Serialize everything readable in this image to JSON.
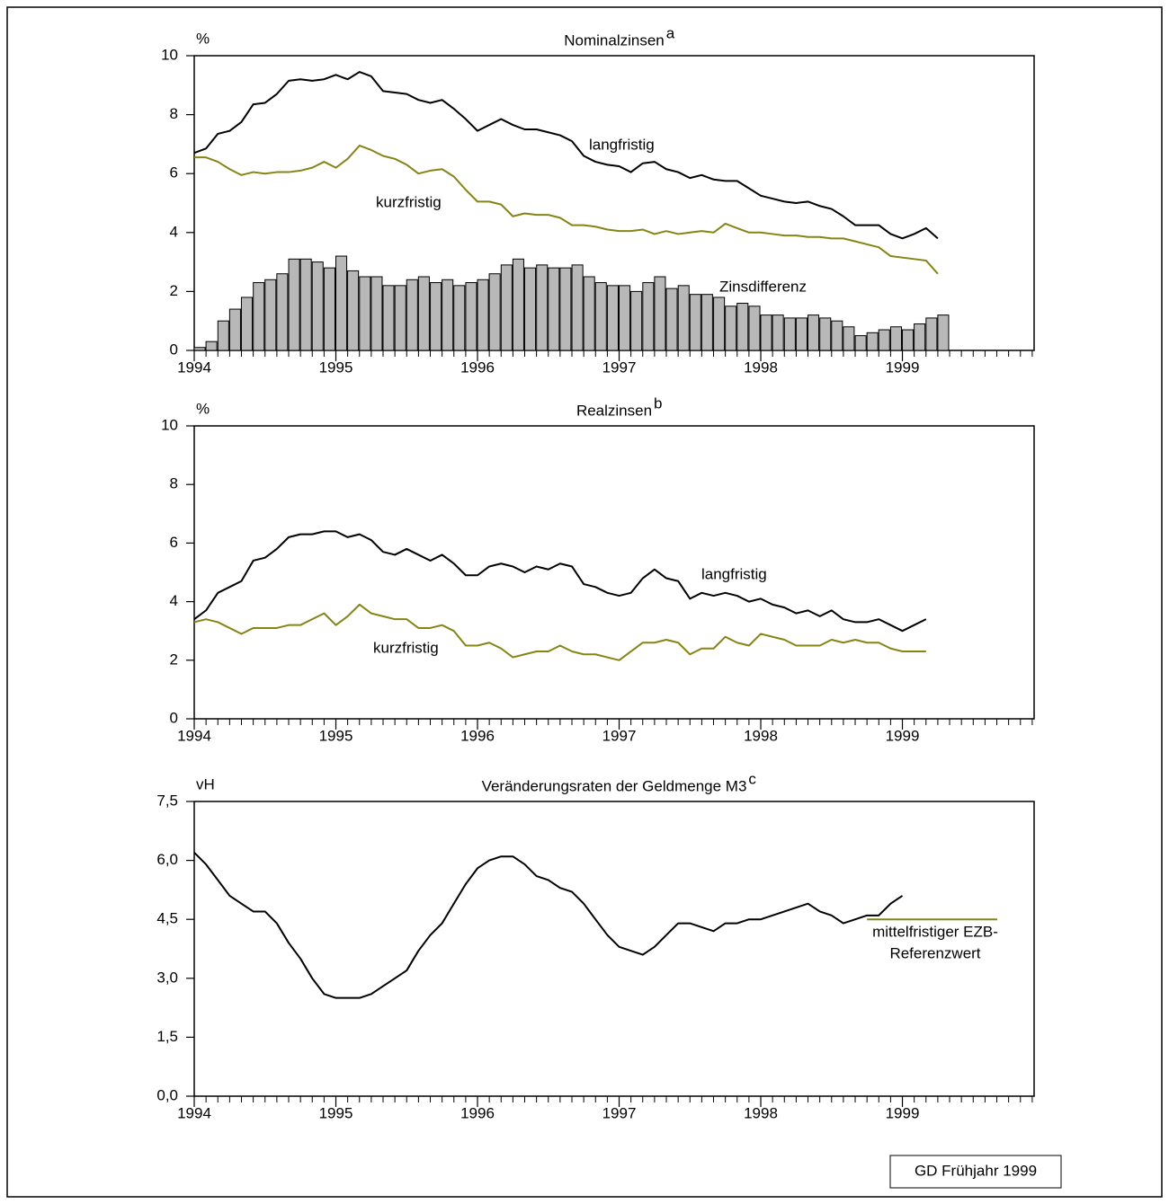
{
  "chart_data": [
    {
      "type": "line",
      "title": "Nominalzinsen",
      "title_superscript": "a",
      "y_unit": "%",
      "x": [
        1994,
        1994.083,
        1994.167,
        1994.25,
        1994.333,
        1994.417,
        1994.5,
        1994.583,
        1994.667,
        1994.75,
        1994.833,
        1994.917,
        1995,
        1995.083,
        1995.167,
        1995.25,
        1995.333,
        1995.417,
        1995.5,
        1995.583,
        1995.667,
        1995.75,
        1995.833,
        1995.917,
        1996,
        1996.083,
        1996.167,
        1996.25,
        1996.333,
        1996.417,
        1996.5,
        1996.583,
        1996.667,
        1996.75,
        1996.833,
        1996.917,
        1997,
        1997.083,
        1997.167,
        1997.25,
        1997.333,
        1997.417,
        1997.5,
        1997.583,
        1997.667,
        1997.75,
        1997.833,
        1997.917,
        1998,
        1998.083,
        1998.167,
        1998.25,
        1998.333,
        1998.417,
        1998.5,
        1998.583,
        1998.667,
        1998.75,
        1998.833,
        1998.917,
        1999,
        1999.083,
        1999.167,
        1999.25
      ],
      "series": [
        {
          "name": "langfristig",
          "type": "line",
          "color": "#000000",
          "values": [
            6.7,
            6.85,
            7.35,
            7.45,
            7.75,
            8.35,
            8.4,
            8.7,
            9.15,
            9.2,
            9.15,
            9.2,
            9.35,
            9.2,
            9.45,
            9.3,
            8.8,
            8.75,
            8.7,
            8.5,
            8.4,
            8.5,
            8.2,
            7.85,
            7.45,
            7.65,
            7.85,
            7.65,
            7.5,
            7.5,
            7.4,
            7.3,
            7.1,
            6.6,
            6.4,
            6.3,
            6.25,
            6.05,
            6.35,
            6.4,
            6.15,
            6.05,
            5.85,
            5.95,
            5.8,
            5.75,
            5.75,
            5.5,
            5.25,
            5.15,
            5.05,
            5.0,
            5.05,
            4.9,
            4.8,
            4.55,
            4.25,
            4.25,
            4.25,
            3.95,
            3.8,
            3.95,
            4.15,
            3.8
          ]
        },
        {
          "name": "kurzfristig",
          "type": "line",
          "color": "#858514",
          "values": [
            6.55,
            6.55,
            6.4,
            6.15,
            5.95,
            6.05,
            6.0,
            6.05,
            6.05,
            6.1,
            6.2,
            6.4,
            6.2,
            6.5,
            6.95,
            6.8,
            6.6,
            6.5,
            6.3,
            6.0,
            6.1,
            6.15,
            5.9,
            5.45,
            5.05,
            5.05,
            4.95,
            4.55,
            4.65,
            4.6,
            4.6,
            4.5,
            4.25,
            4.25,
            4.2,
            4.1,
            4.05,
            4.05,
            4.1,
            3.95,
            4.05,
            3.95,
            4.0,
            4.05,
            4.0,
            4.3,
            4.15,
            4.0,
            4.0,
            3.95,
            3.9,
            3.9,
            3.85,
            3.85,
            3.8,
            3.8,
            3.7,
            3.6,
            3.5,
            3.2,
            3.15,
            3.1,
            3.05,
            2.6
          ]
        },
        {
          "name": "Zinsdifferenz",
          "type": "bar",
          "color": "#b8b8b8",
          "values": [
            0.1,
            0.3,
            1.0,
            1.4,
            1.8,
            2.3,
            2.4,
            2.6,
            3.1,
            3.1,
            3.0,
            2.8,
            3.2,
            2.7,
            2.5,
            2.5,
            2.2,
            2.2,
            2.4,
            2.5,
            2.3,
            2.4,
            2.2,
            2.3,
            2.4,
            2.6,
            2.9,
            3.1,
            2.8,
            2.9,
            2.8,
            2.8,
            2.9,
            2.5,
            2.3,
            2.2,
            2.2,
            2.0,
            2.3,
            2.5,
            2.1,
            2.2,
            1.9,
            1.9,
            1.8,
            1.5,
            1.6,
            1.5,
            1.2,
            1.2,
            1.1,
            1.1,
            1.2,
            1.1,
            1.0,
            0.8,
            0.5,
            0.6,
            0.7,
            0.8,
            0.7,
            0.9,
            1.1,
            1.2
          ]
        }
      ],
      "xlim": [
        1994,
        1999.93
      ],
      "xticks": [
        1994,
        1995,
        1996,
        1997,
        1998,
        1999
      ],
      "ylim": [
        0,
        10
      ],
      "yticks": [
        0,
        2,
        4,
        6,
        8,
        10
      ]
    },
    {
      "type": "line",
      "title": "Realzinsen",
      "title_superscript": "b",
      "y_unit": "%",
      "x": [
        1994,
        1994.083,
        1994.167,
        1994.25,
        1994.333,
        1994.417,
        1994.5,
        1994.583,
        1994.667,
        1994.75,
        1994.833,
        1994.917,
        1995,
        1995.083,
        1995.167,
        1995.25,
        1995.333,
        1995.417,
        1995.5,
        1995.583,
        1995.667,
        1995.75,
        1995.833,
        1995.917,
        1996,
        1996.083,
        1996.167,
        1996.25,
        1996.333,
        1996.417,
        1996.5,
        1996.583,
        1996.667,
        1996.75,
        1996.833,
        1996.917,
        1997,
        1997.083,
        1997.167,
        1997.25,
        1997.333,
        1997.417,
        1997.5,
        1997.583,
        1997.667,
        1997.75,
        1997.833,
        1997.917,
        1998,
        1998.083,
        1998.167,
        1998.25,
        1998.333,
        1998.417,
        1998.5,
        1998.583,
        1998.667,
        1998.75,
        1998.833,
        1998.917,
        1999,
        1999.083,
        1999.167
      ],
      "series": [
        {
          "name": "langfristig",
          "type": "line",
          "color": "#000000",
          "values": [
            3.4,
            3.7,
            4.3,
            4.5,
            4.7,
            5.4,
            5.5,
            5.8,
            6.2,
            6.3,
            6.3,
            6.4,
            6.4,
            6.2,
            6.3,
            6.1,
            5.7,
            5.6,
            5.8,
            5.6,
            5.4,
            5.6,
            5.3,
            4.9,
            4.9,
            5.2,
            5.3,
            5.2,
            5.0,
            5.2,
            5.1,
            5.3,
            5.2,
            4.6,
            4.5,
            4.3,
            4.2,
            4.3,
            4.8,
            5.1,
            4.8,
            4.7,
            4.1,
            4.3,
            4.2,
            4.3,
            4.2,
            4.0,
            4.1,
            3.9,
            3.8,
            3.6,
            3.7,
            3.5,
            3.7,
            3.4,
            3.3,
            3.3,
            3.4,
            3.2,
            3.0,
            3.2,
            3.4
          ]
        },
        {
          "name": "kurzfristig",
          "type": "line",
          "color": "#858514",
          "values": [
            3.3,
            3.4,
            3.3,
            3.1,
            2.9,
            3.1,
            3.1,
            3.1,
            3.2,
            3.2,
            3.4,
            3.6,
            3.2,
            3.5,
            3.9,
            3.6,
            3.5,
            3.4,
            3.4,
            3.1,
            3.1,
            3.2,
            3.0,
            2.5,
            2.5,
            2.6,
            2.4,
            2.1,
            2.2,
            2.3,
            2.3,
            2.5,
            2.3,
            2.2,
            2.2,
            2.1,
            2.0,
            2.3,
            2.6,
            2.6,
            2.7,
            2.6,
            2.2,
            2.4,
            2.4,
            2.8,
            2.6,
            2.5,
            2.9,
            2.8,
            2.7,
            2.5,
            2.5,
            2.5,
            2.7,
            2.6,
            2.7,
            2.6,
            2.6,
            2.4,
            2.3,
            2.3,
            2.3
          ]
        }
      ],
      "xlim": [
        1994,
        1999.93
      ],
      "xticks": [
        1994,
        1995,
        1996,
        1997,
        1998,
        1999
      ],
      "ylim": [
        0,
        10
      ],
      "yticks": [
        0,
        2,
        4,
        6,
        8,
        10
      ]
    },
    {
      "type": "line",
      "title": "Veränderungsraten der Geldmenge M3",
      "title_superscript": "c",
      "y_unit": "vH",
      "x": [
        1994,
        1994.083,
        1994.167,
        1994.25,
        1994.333,
        1994.417,
        1994.5,
        1994.583,
        1994.667,
        1994.75,
        1994.833,
        1994.917,
        1995,
        1995.083,
        1995.167,
        1995.25,
        1995.333,
        1995.417,
        1995.5,
        1995.583,
        1995.667,
        1995.75,
        1995.833,
        1995.917,
        1996,
        1996.083,
        1996.167,
        1996.25,
        1996.333,
        1996.417,
        1996.5,
        1996.583,
        1996.667,
        1996.75,
        1996.833,
        1996.917,
        1997,
        1997.083,
        1997.167,
        1997.25,
        1997.333,
        1997.417,
        1997.5,
        1997.583,
        1997.667,
        1997.75,
        1997.833,
        1997.917,
        1998,
        1998.083,
        1998.167,
        1998.25,
        1998.333,
        1998.417,
        1998.5,
        1998.583,
        1998.667,
        1998.75,
        1998.833,
        1998.917,
        1999
      ],
      "series": [
        {
          "type": "line",
          "color": "#000000",
          "values": [
            6.2,
            5.9,
            5.5,
            5.1,
            4.9,
            4.7,
            4.7,
            4.4,
            3.9,
            3.5,
            3.0,
            2.6,
            2.5,
            2.5,
            2.5,
            2.6,
            2.8,
            3.0,
            3.2,
            3.7,
            4.1,
            4.4,
            4.9,
            5.4,
            5.8,
            6.0,
            6.1,
            6.1,
            5.9,
            5.6,
            5.5,
            5.3,
            5.2,
            4.9,
            4.5,
            4.1,
            3.8,
            3.7,
            3.6,
            3.8,
            4.1,
            4.4,
            4.4,
            4.3,
            4.2,
            4.4,
            4.4,
            4.5,
            4.5,
            4.6,
            4.7,
            4.8,
            4.9,
            4.7,
            4.6,
            4.4,
            4.5,
            4.6,
            4.6,
            4.9,
            5.1
          ]
        },
        {
          "label": [
            "mittelfristiger EZB-",
            "Referenzwert"
          ],
          "type": "line",
          "color": "#858514",
          "x": [
            1998.75,
            1999.67
          ],
          "values": [
            4.5,
            4.5
          ]
        }
      ],
      "xlim": [
        1994,
        1999.93
      ],
      "xticks": [
        1994,
        1995,
        1996,
        1997,
        1998,
        1999
      ],
      "ylim": [
        0,
        7.5
      ],
      "yticks": [
        {
          "value": 0,
          "label": "0,0"
        },
        {
          "value": 1.5,
          "label": "1,5"
        },
        {
          "value": 3,
          "label": "3,0"
        },
        {
          "value": 4.5,
          "label": "4,5"
        },
        {
          "value": 6,
          "label": "6,0"
        },
        {
          "value": 7.5,
          "label": "7,5"
        }
      ]
    }
  ],
  "footer": "GD Frühjahr 1999"
}
